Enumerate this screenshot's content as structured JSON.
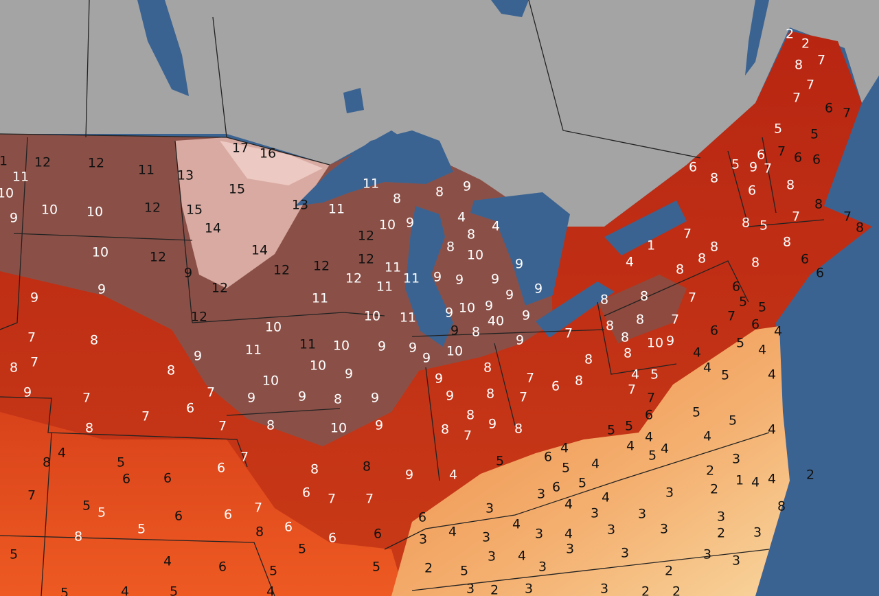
{
  "map": {
    "colors": {
      "water": "#3b6391",
      "canada_land": "#a4a4a4",
      "lowest_values": "#f7cf96",
      "low_values": "#ee8a45",
      "mid_values": "#d9431b",
      "high_values": "#a5200f",
      "higher_values": "#8a5047",
      "highest_values": "#e4b8b0",
      "borders": "#222222"
    },
    "labels": [
      "1",
      "11",
      "10",
      "9",
      "12",
      "12",
      "11",
      "13",
      "10",
      "10",
      "12",
      "15",
      "14",
      "17",
      "16",
      "15",
      "13",
      "11",
      "11",
      "8",
      "8",
      "9",
      "10",
      "9",
      "12",
      "10",
      "12",
      "14",
      "12",
      "12",
      "12",
      "11",
      "9",
      "12",
      "12",
      "11",
      "11",
      "11",
      "9",
      "9",
      "12",
      "10",
      "11",
      "10",
      "11",
      "10",
      "11",
      "7",
      "8",
      "8",
      "7",
      "9",
      "10",
      "9",
      "9",
      "9",
      "8",
      "10",
      "9",
      "9",
      "8",
      "9",
      "9",
      "7",
      "7",
      "6",
      "7",
      "8",
      "7",
      "8",
      "10",
      "9",
      "8",
      "4",
      "5",
      "6",
      "6",
      "6",
      "7",
      "8",
      "8",
      "9",
      "7",
      "5",
      "5",
      "6",
      "6",
      "7",
      "6",
      "7",
      "7",
      "8",
      "5",
      "8",
      "6",
      "6",
      "6",
      "6",
      "5",
      "4",
      "6",
      "5",
      "5",
      "5",
      "4",
      "5",
      "5",
      "4",
      "4",
      "4",
      "8",
      "8",
      "10",
      "9",
      "9",
      "9",
      "9",
      "9",
      "9",
      "10",
      "9",
      "9",
      "9",
      "8",
      "40",
      "9",
      "9",
      "9",
      "10",
      "8",
      "9",
      "9",
      "8",
      "8",
      "9",
      "8",
      "7",
      "8",
      "7",
      "6",
      "8",
      "7",
      "7",
      "8",
      "8",
      "8",
      "8",
      "8",
      "8",
      "8",
      "10",
      "9",
      "7",
      "7",
      "6",
      "7",
      "5",
      "6",
      "5",
      "6",
      "4",
      "4",
      "4",
      "5",
      "5",
      "4",
      "4",
      "4",
      "5",
      "7",
      "7",
      "6",
      "5",
      "5",
      "4",
      "4",
      "4",
      "5",
      "5",
      "5",
      "4",
      "4",
      "3",
      "2",
      "1",
      "2",
      "4",
      "4",
      "2",
      "8",
      "2",
      "2",
      "7",
      "8",
      "7",
      "7",
      "6",
      "7",
      "5",
      "5",
      "7",
      "6",
      "6",
      "6",
      "5",
      "9",
      "7",
      "6",
      "8",
      "6",
      "8",
      "8",
      "8",
      "7",
      "5",
      "7",
      "7",
      "8",
      "1",
      "4",
      "8",
      "8",
      "8",
      "8",
      "8",
      "6",
      "6",
      "4",
      "5",
      "6",
      "4",
      "5",
      "5",
      "4",
      "3",
      "6",
      "4",
      "4",
      "3",
      "3",
      "4",
      "3",
      "4",
      "3",
      "4",
      "3",
      "3",
      "3",
      "3",
      "3",
      "2",
      "3",
      "3",
      "2",
      "5",
      "3",
      "4",
      "3",
      "3",
      "3",
      "3",
      "3",
      "2",
      "3",
      "2",
      "3",
      "3",
      "2",
      "2",
      "4",
      "2"
    ]
  }
}
